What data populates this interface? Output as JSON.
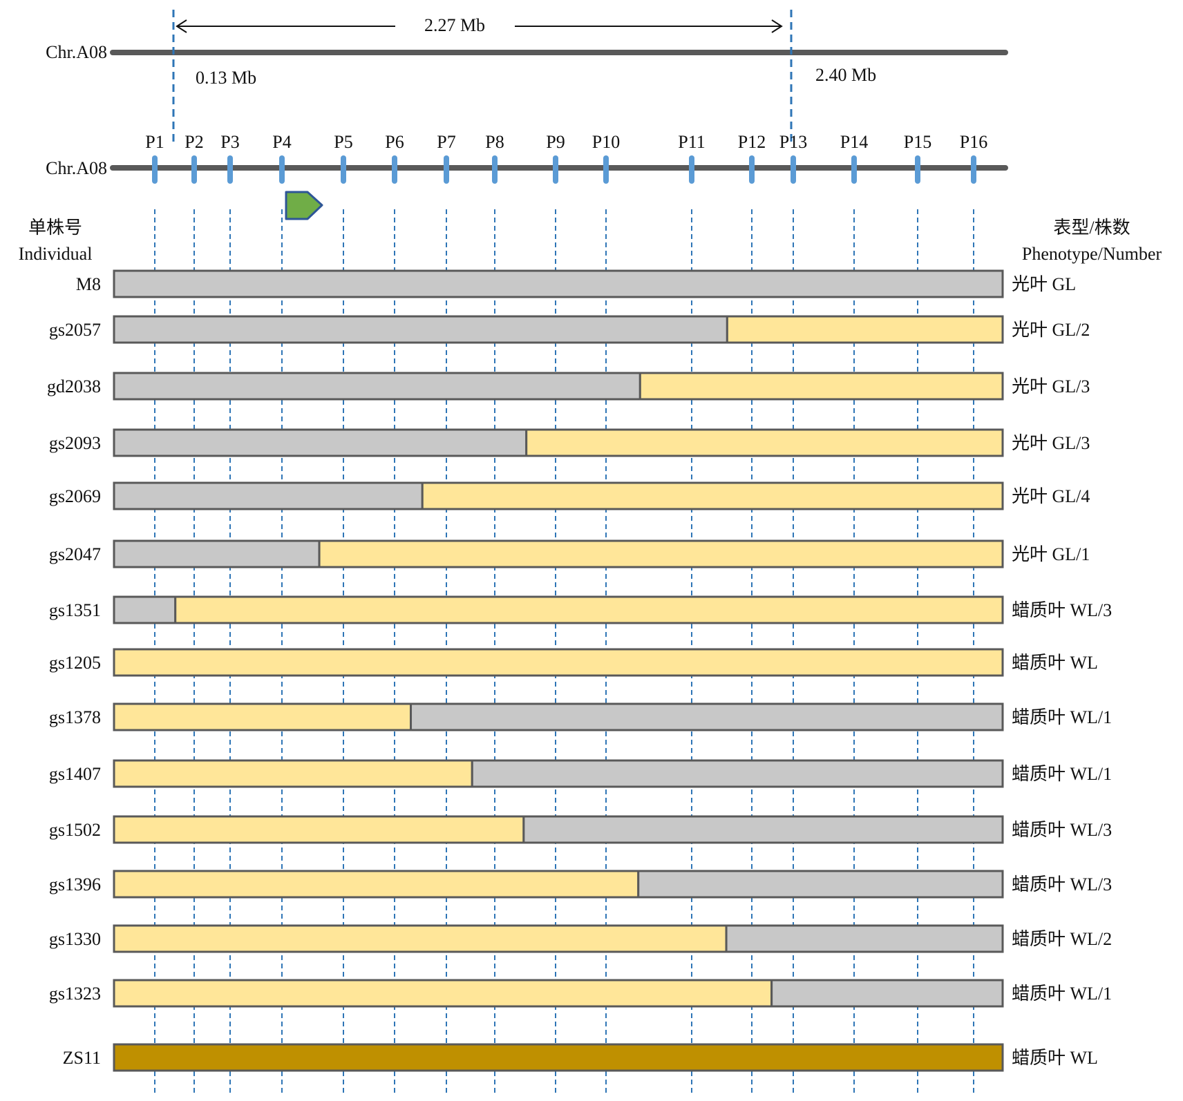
{
  "top_map": {
    "chrom_label": "Chr.A08",
    "span_label": "2.27 Mb",
    "left_pos_label": "0.13 Mb",
    "right_pos_label": "2.40 Mb"
  },
  "marker_map": {
    "chrom_label": "Chr.A08",
    "markers": [
      "P1",
      "P2",
      "P3",
      "P4",
      "P5",
      "P6",
      "P7",
      "P8",
      "P9",
      "P10",
      "P11",
      "P12",
      "P13",
      "P14",
      "P15",
      "P16"
    ]
  },
  "headers": {
    "individual_cn": "单株号",
    "individual_en": "Individual",
    "phenotype_cn": "表型/株数",
    "phenotype_en": "Phenotype/Number"
  },
  "colors": {
    "gray": "#c8c8c8",
    "yellow": "#ffe699",
    "zs11": "#bf9000",
    "marker_blue": "#5b9bd5",
    "guide_blue": "#2e75b6",
    "chrom": "#595959",
    "gene_arrow": "#70ad47",
    "gene_arrow_stroke": "#2e5597"
  },
  "individuals": [
    {
      "id": "M8",
      "phenotype": "光叶 GL",
      "segments": [
        {
          "color": "gray",
          "from": 0,
          "to": 1
        }
      ]
    },
    {
      "id": "gs2057",
      "phenotype": "光叶 GL/2",
      "segments": [
        {
          "color": "gray",
          "from": 0,
          "to": 0.69
        },
        {
          "color": "yellow",
          "from": 0.69,
          "to": 1
        }
      ]
    },
    {
      "id": "gd2038",
      "phenotype": "光叶 GL/3",
      "segments": [
        {
          "color": "gray",
          "from": 0,
          "to": 0.592
        },
        {
          "color": "yellow",
          "from": 0.592,
          "to": 1
        }
      ]
    },
    {
      "id": "gs2093",
      "phenotype": "光叶 GL/3",
      "segments": [
        {
          "color": "gray",
          "from": 0,
          "to": 0.464
        },
        {
          "color": "yellow",
          "from": 0.464,
          "to": 1
        }
      ]
    },
    {
      "id": "gs2069",
      "phenotype": "光叶 GL/4",
      "segments": [
        {
          "color": "gray",
          "from": 0,
          "to": 0.347
        },
        {
          "color": "yellow",
          "from": 0.347,
          "to": 1
        }
      ]
    },
    {
      "id": "gs2047",
      "phenotype": "光叶 GL/1",
      "segments": [
        {
          "color": "gray",
          "from": 0,
          "to": 0.231
        },
        {
          "color": "yellow",
          "from": 0.231,
          "to": 1
        }
      ]
    },
    {
      "id": "gs1351",
      "phenotype": "蜡质叶 WL/3",
      "segments": [
        {
          "color": "gray",
          "from": 0,
          "to": 0.069
        },
        {
          "color": "yellow",
          "from": 0.069,
          "to": 1
        }
      ]
    },
    {
      "id": "gs1205",
      "phenotype": "蜡质叶 WL",
      "segments": [
        {
          "color": "yellow",
          "from": 0,
          "to": 1
        }
      ]
    },
    {
      "id": "gs1378",
      "phenotype": "蜡质叶 WL/1",
      "segments": [
        {
          "color": "yellow",
          "from": 0,
          "to": 0.334
        },
        {
          "color": "gray",
          "from": 0.334,
          "to": 1
        }
      ]
    },
    {
      "id": "gs1407",
      "phenotype": "蜡质叶 WL/1",
      "segments": [
        {
          "color": "yellow",
          "from": 0,
          "to": 0.403
        },
        {
          "color": "gray",
          "from": 0.403,
          "to": 1
        }
      ]
    },
    {
      "id": "gs1502",
      "phenotype": "蜡质叶 WL/3",
      "segments": [
        {
          "color": "yellow",
          "from": 0,
          "to": 0.461
        },
        {
          "color": "gray",
          "from": 0.461,
          "to": 1
        }
      ]
    },
    {
      "id": "gs1396",
      "phenotype": "蜡质叶 WL/3",
      "segments": [
        {
          "color": "yellow",
          "from": 0,
          "to": 0.59
        },
        {
          "color": "gray",
          "from": 0.59,
          "to": 1
        }
      ]
    },
    {
      "id": "gs1330",
      "phenotype": "蜡质叶 WL/2",
      "segments": [
        {
          "color": "yellow",
          "from": 0,
          "to": 0.689
        },
        {
          "color": "gray",
          "from": 0.689,
          "to": 1
        }
      ]
    },
    {
      "id": "gs1323",
      "phenotype": "蜡质叶 WL/1",
      "segments": [
        {
          "color": "yellow",
          "from": 0,
          "to": 0.74
        },
        {
          "color": "gray",
          "from": 0.74,
          "to": 1
        }
      ]
    },
    {
      "id": "ZS11",
      "phenotype": "蜡质叶 WL",
      "segments": [
        {
          "color": "zs11",
          "from": 0,
          "to": 1
        }
      ]
    }
  ]
}
